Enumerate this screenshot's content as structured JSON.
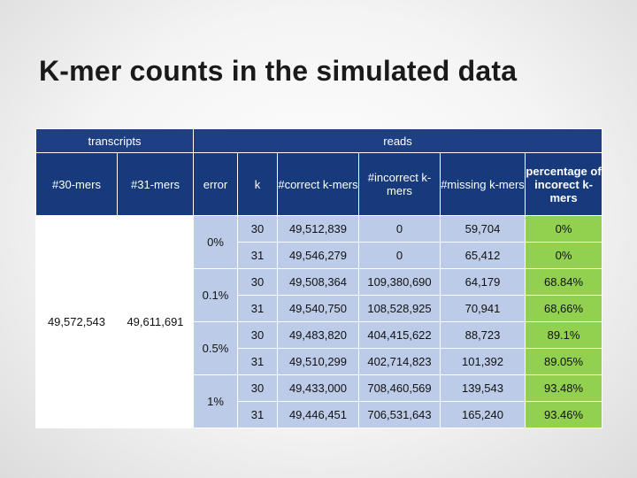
{
  "title": "K-mer counts in the simulated data",
  "table": {
    "group_headers": {
      "transcripts": "transcripts",
      "reads": "reads"
    },
    "columns": {
      "c30": "#30-mers",
      "c31": "#31-mers",
      "error": "error",
      "k": "k",
      "correct": "#correct k-mers",
      "incorrect": "#incorrect k-mers",
      "missing": "#missing k-mers",
      "percentage": "percentage of incorect k-mers"
    },
    "transcripts_30": "49,572,543",
    "transcripts_31": "49,611,691",
    "groups": [
      {
        "error": "0%",
        "rows": [
          {
            "k": "30",
            "correct": "49,512,839",
            "incorrect": "0",
            "missing": "59,704",
            "pct": "0%"
          },
          {
            "k": "31",
            "correct": "49,546,279",
            "incorrect": "0",
            "missing": "65,412",
            "pct": "0%"
          }
        ]
      },
      {
        "error": "0.1%",
        "rows": [
          {
            "k": "30",
            "correct": "49,508,364",
            "incorrect": "109,380,690",
            "missing": "64,179",
            "pct": "68.84%"
          },
          {
            "k": "31",
            "correct": "49,540,750",
            "incorrect": "108,528,925",
            "missing": "70,941",
            "pct": "68,66%"
          }
        ]
      },
      {
        "error": "0.5%",
        "rows": [
          {
            "k": "30",
            "correct": "49,483,820",
            "incorrect": "404,415,622",
            "missing": "88,723",
            "pct": "89.1%"
          },
          {
            "k": "31",
            "correct": "49,510,299",
            "incorrect": "402,714,823",
            "missing": "101,392",
            "pct": "89.05%"
          }
        ]
      },
      {
        "error": "1%",
        "rows": [
          {
            "k": "30",
            "correct": "49,433,000",
            "incorrect": "708,460,569",
            "missing": "139,543",
            "pct": "93.48%"
          },
          {
            "k": "31",
            "correct": "49,446,451",
            "incorrect": "706,531,643",
            "missing": "165,240",
            "pct": "93.46%"
          }
        ]
      }
    ],
    "colors": {
      "header": "#163a7c",
      "light_blue": "#bccbe8",
      "green": "#92d050"
    }
  }
}
